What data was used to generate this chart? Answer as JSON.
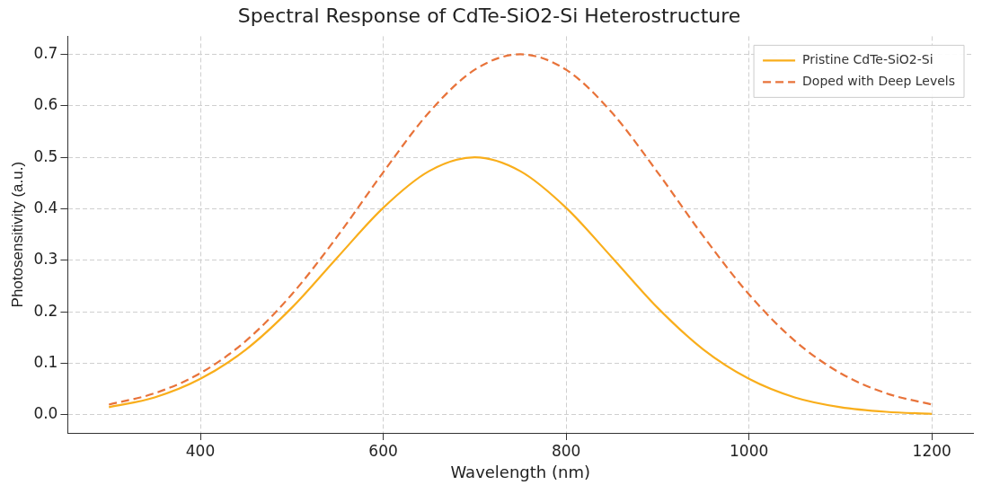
{
  "chart_data": {
    "type": "line",
    "title": "Spectral Response of CdTe-SiO2-Si Heterostructure",
    "xlabel": "Wavelength (nm)",
    "ylabel": "Photosensitivity (a.u.)",
    "x": [
      300,
      350,
      400,
      450,
      500,
      550,
      600,
      650,
      700,
      750,
      800,
      850,
      900,
      950,
      1000,
      1050,
      1100,
      1150,
      1200
    ],
    "series": [
      {
        "name": "Pristine CdTe-SiO2-Si",
        "color": "#f9ae1b",
        "line_style": "solid",
        "values": [
          0.015,
          0.034,
          0.07,
          0.127,
          0.208,
          0.306,
          0.402,
          0.473,
          0.5,
          0.473,
          0.402,
          0.306,
          0.208,
          0.127,
          0.07,
          0.034,
          0.015,
          0.006,
          0.002
        ]
      },
      {
        "name": "Doped with Deep Levels",
        "color": "#e8733a",
        "line_style": "dashed",
        "values": [
          0.02,
          0.042,
          0.081,
          0.144,
          0.234,
          0.347,
          0.471,
          0.587,
          0.67,
          0.7,
          0.67,
          0.587,
          0.471,
          0.347,
          0.234,
          0.144,
          0.081,
          0.042,
          0.02
        ]
      }
    ],
    "xlim": [
      255,
      1245
    ],
    "xticks": [
      400,
      600,
      800,
      1000,
      1200
    ],
    "ylim": [
      -0.035,
      0.735
    ],
    "yticks": [
      {
        "value": 0,
        "label": "0.0"
      },
      {
        "value": 0.1,
        "label": "0.1"
      },
      {
        "value": 0.2,
        "label": "0.2"
      },
      {
        "value": 0.3,
        "label": "0.3"
      },
      {
        "value": 0.4,
        "label": "0.4"
      },
      {
        "value": 0.5,
        "label": "0.5"
      },
      {
        "value": 0.6,
        "label": "0.6"
      },
      {
        "value": 0.7,
        "label": "0.7"
      }
    ],
    "grid": true,
    "legend": "top right",
    "marker": "none"
  }
}
